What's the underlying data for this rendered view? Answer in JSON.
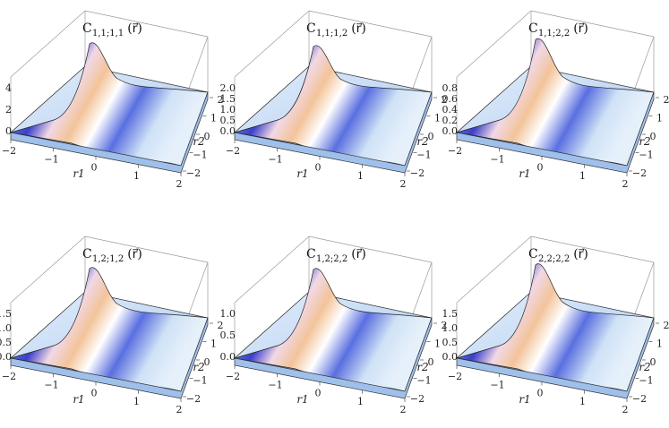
{
  "page": {
    "background": "#ffffff"
  },
  "colors": {
    "low": "#cfe4f7",
    "mid": "#ffffff",
    "high": "#f3c49a",
    "valley": "#3b3fc9",
    "frame": "#9a9a9a"
  },
  "chart_data": [
    {
      "type": "surface",
      "title": "C_{1,1;1,1}(r)",
      "title_main": "C",
      "title_sub": "1,1;1,1",
      "title_arg": "(r⃗)",
      "xlabel": "r1",
      "ylabel": "r2",
      "x_ticks": [
        "−2",
        "−1",
        "0",
        "1",
        "2"
      ],
      "y_ticks": [
        "−2",
        "−1",
        "0",
        "1",
        "2"
      ],
      "z_ticks": [
        "0",
        "2",
        "4"
      ],
      "zlim": [
        0,
        4
      ],
      "z_peak": 4.2
    },
    {
      "type": "surface",
      "title": "C_{1,1;1,2}(r)",
      "title_main": "C",
      "title_sub": "1,1;1,2",
      "title_arg": "(r⃗)",
      "xlabel": "r1",
      "ylabel": "r2",
      "x_ticks": [
        "−2",
        "−1",
        "0",
        "1",
        "2"
      ],
      "y_ticks": [
        "−2",
        "−1",
        "0",
        "1",
        "2"
      ],
      "z_ticks": [
        "0.0",
        "0.5",
        "1.0",
        "1.5",
        "2.0"
      ],
      "zlim": [
        0,
        2.0
      ],
      "z_peak": 2.0
    },
    {
      "type": "surface",
      "title": "C_{1,1;2,2}(r)",
      "title_main": "C",
      "title_sub": "1,1;2,2",
      "title_arg": "(r⃗)",
      "xlabel": "r1",
      "ylabel": "r2",
      "x_ticks": [
        "−2",
        "−1",
        "0",
        "1",
        "2"
      ],
      "y_ticks": [
        "−2",
        "−1",
        "0",
        "1",
        "2"
      ],
      "z_ticks": [
        "0.0",
        "0.2",
        "0.4",
        "0.6",
        "0.8"
      ],
      "zlim": [
        0,
        0.8
      ],
      "z_peak": 0.9
    },
    {
      "type": "surface",
      "title": "C_{1,2;1,2}(r)",
      "title_main": "C",
      "title_sub": "1,2;1,2",
      "title_arg": "(r⃗)",
      "xlabel": "r1",
      "ylabel": "r2",
      "x_ticks": [
        "−2",
        "−1",
        "0",
        "1",
        "2"
      ],
      "y_ticks": [
        "−2",
        "−1",
        "0",
        "1",
        "2"
      ],
      "z_ticks": [
        "0.0",
        "0.5",
        "1.0",
        "1.5"
      ],
      "zlim": [
        0,
        1.5
      ],
      "z_peak": 1.6
    },
    {
      "type": "surface",
      "title": "C_{1,2;2,2}(r)",
      "title_main": "C",
      "title_sub": "1,2;2,2",
      "title_arg": "(r⃗)",
      "xlabel": "r1",
      "ylabel": "r2",
      "x_ticks": [
        "−2",
        "−1",
        "0",
        "1",
        "2"
      ],
      "y_ticks": [
        "−2",
        "−1",
        "0",
        "1",
        "2"
      ],
      "z_ticks": [
        "0.0",
        "0.5",
        "1.0"
      ],
      "zlim": [
        0,
        1.0
      ],
      "z_peak": 1.05
    },
    {
      "type": "surface",
      "title": "C_{2,2;2,2}(r)",
      "title_main": "C",
      "title_sub": "2,2;2,2",
      "title_arg": "(r⃗)",
      "xlabel": "r1",
      "ylabel": "r2",
      "x_ticks": [
        "−2",
        "−1",
        "0",
        "1",
        "2"
      ],
      "y_ticks": [
        "−2",
        "−1",
        "0",
        "1",
        "2"
      ],
      "z_ticks": [
        "0.0",
        "0.5",
        "1.0",
        "1.5"
      ],
      "zlim": [
        0,
        1.5
      ],
      "z_peak": 1.7
    }
  ]
}
